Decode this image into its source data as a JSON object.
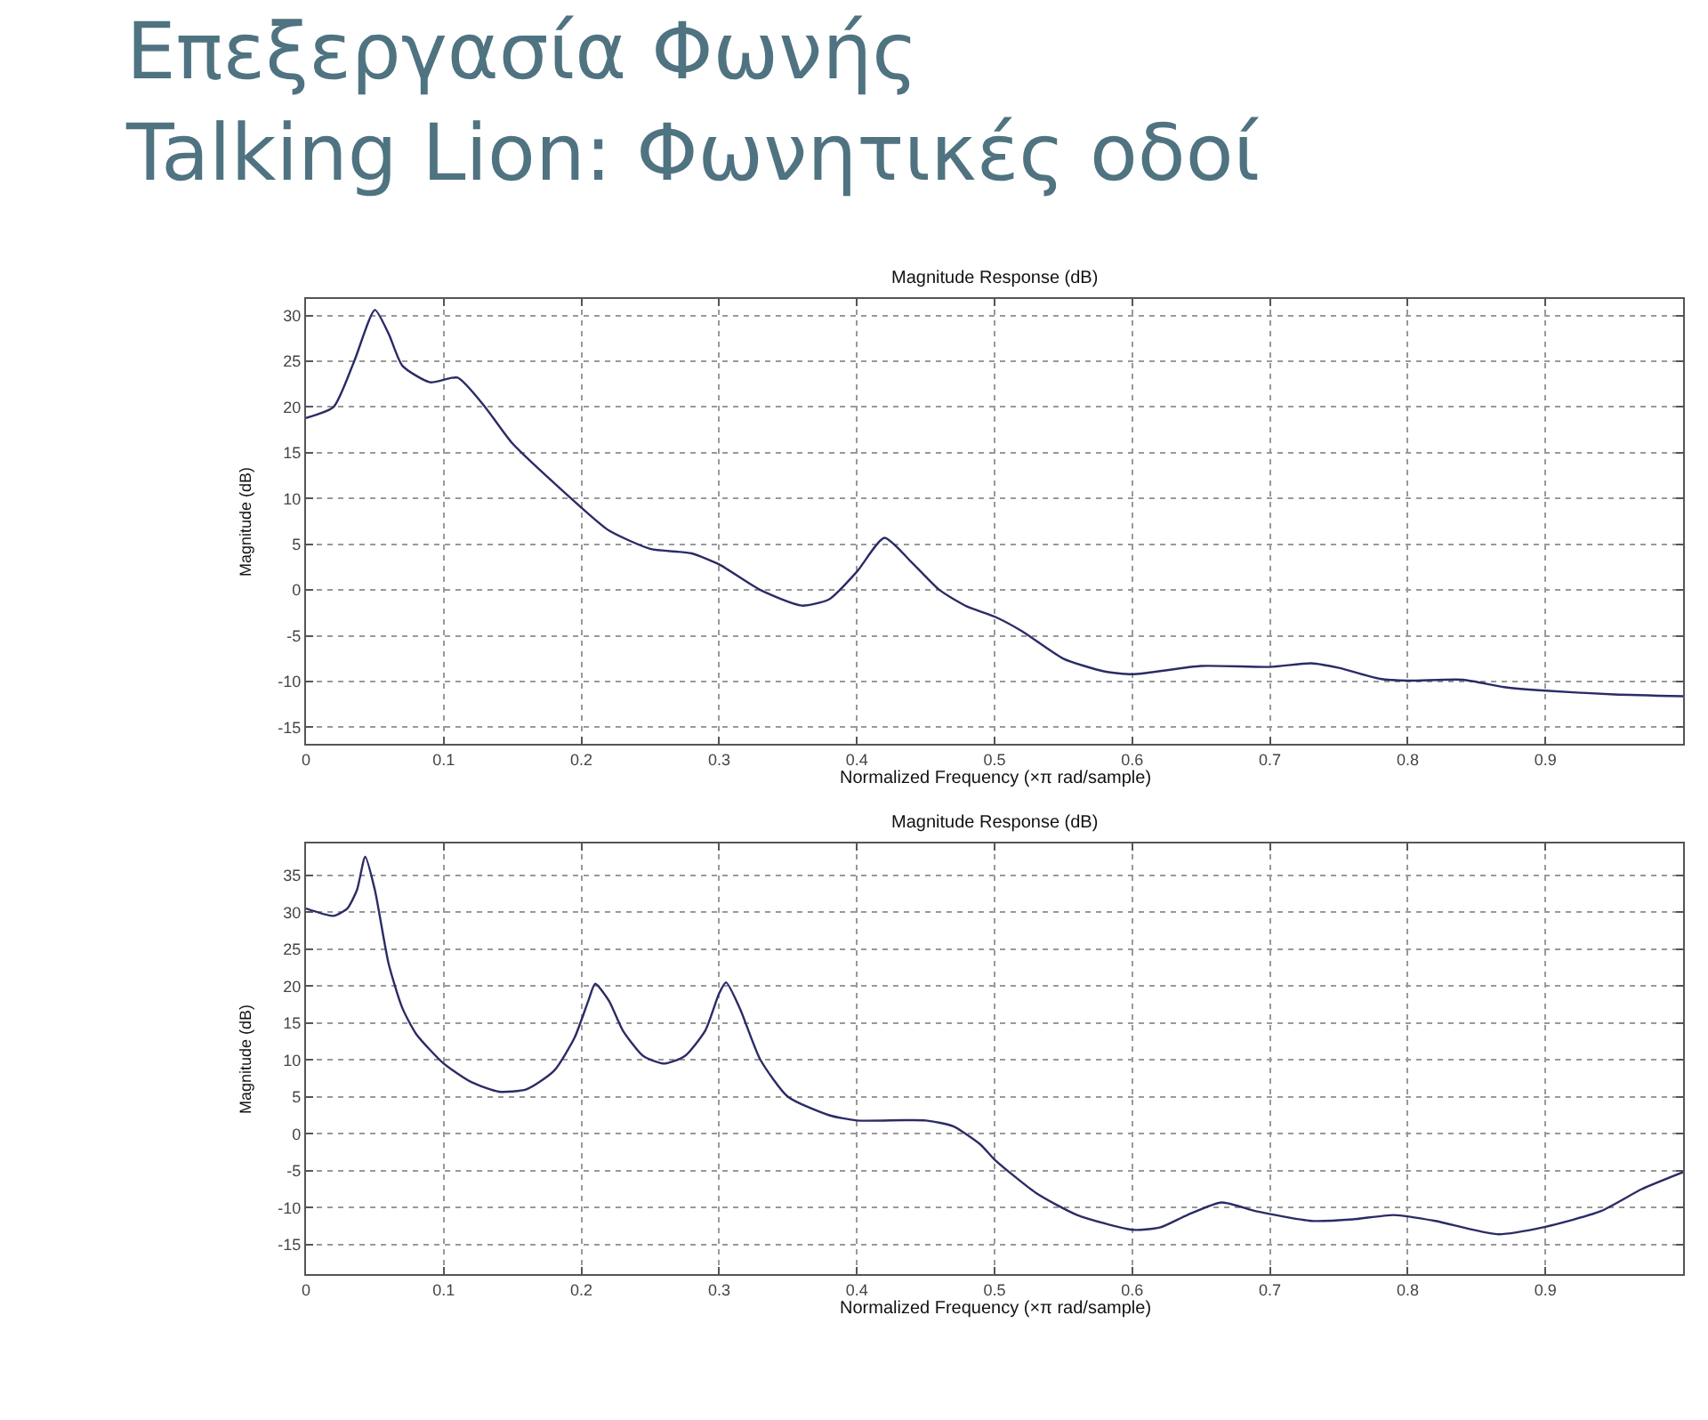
{
  "chart_data": [
    {
      "type": "line",
      "title": "Magnitude Response (dB)",
      "xlabel": "Normalized Frequency (×π rad/sample)",
      "ylabel": "Magnitude (dB)",
      "annotations": [
        "Επεξεργασία Φωνής\nTalking Lion: Φωνητικές οδοί"
      ],
      "x": [
        0,
        0.02,
        0.035,
        0.05,
        0.06,
        0.07,
        0.09,
        0.11,
        0.13,
        0.15,
        0.2,
        0.22,
        0.25,
        0.28,
        0.3,
        0.33,
        0.36,
        0.38,
        0.4,
        0.42,
        0.44,
        0.46,
        0.48,
        0.5,
        0.52,
        0.55,
        0.58,
        0.6,
        0.65,
        0.7,
        0.73,
        0.75,
        0.78,
        0.8,
        0.84,
        0.87,
        0.9,
        0.95,
        1.0
      ],
      "series": [
        {
          "color": "#2b2b66",
          "values": [
            18.8,
            20,
            25,
            30.6,
            28,
            24.5,
            22.7,
            23.2,
            20,
            16,
            9,
            6.5,
            4.5,
            4,
            2.8,
            0,
            -1.7,
            -1,
            2,
            5.7,
            3,
            0,
            -1.8,
            -2.9,
            -4.5,
            -7.5,
            -8.9,
            -9.2,
            -8.3,
            -8.4,
            -8,
            -8.5,
            -9.7,
            -9.9,
            -9.8,
            -10.6,
            -11,
            -11.4,
            -11.6
          ]
        }
      ],
      "xlim": [
        0,
        1
      ],
      "xticks": [
        0,
        0.1,
        0.2,
        0.3,
        0.4,
        0.5,
        0.6,
        0.7,
        0.8,
        0.9
      ],
      "ylim": [
        -16.8,
        31.8
      ],
      "yticks": [
        -15,
        -10,
        -5,
        0,
        5,
        10,
        15,
        20,
        25,
        30
      ],
      "grid": true,
      "line_style": "solid"
    },
    {
      "type": "line",
      "title": "Magnitude Response (dB)",
      "xlabel": "Normalized Frequency (×π rad/sample)",
      "ylabel": "Magnitude (dB)",
      "x": [
        0,
        0.02,
        0.03,
        0.037,
        0.043,
        0.05,
        0.06,
        0.07,
        0.08,
        0.1,
        0.12,
        0.14,
        0.16,
        0.18,
        0.195,
        0.205,
        0.21,
        0.22,
        0.23,
        0.245,
        0.26,
        0.275,
        0.29,
        0.3,
        0.305,
        0.315,
        0.33,
        0.35,
        0.38,
        0.4,
        0.45,
        0.47,
        0.49,
        0.5,
        0.53,
        0.56,
        0.6,
        0.62,
        0.64,
        0.665,
        0.69,
        0.73,
        0.76,
        0.79,
        0.82,
        0.865,
        0.9,
        0.94,
        0.97,
        1.0
      ],
      "series": [
        {
          "color": "#2b2b66",
          "values": [
            30.5,
            29.5,
            30.5,
            33,
            37.5,
            33,
            23,
            17,
            13.5,
            9.5,
            7,
            5.7,
            6,
            8.5,
            13,
            18,
            20.3,
            18,
            14,
            10.5,
            9.5,
            10.5,
            14,
            19,
            20.5,
            17,
            10,
            5,
            2.5,
            1.8,
            1.8,
            1,
            -1.5,
            -3.5,
            -8,
            -11,
            -13,
            -12.7,
            -11,
            -9.3,
            -10.5,
            -11.8,
            -11.6,
            -11,
            -11.8,
            -13.6,
            -12.6,
            -10.5,
            -7.5,
            -5.2
          ]
        }
      ],
      "xlim": [
        0,
        1
      ],
      "xticks": [
        0,
        0.1,
        0.2,
        0.3,
        0.4,
        0.5,
        0.6,
        0.7,
        0.8,
        0.9
      ],
      "ylim": [
        -19,
        39.3
      ],
      "yticks": [
        -15,
        -10,
        -5,
        0,
        5,
        10,
        15,
        20,
        25,
        30,
        35
      ],
      "grid": true,
      "line_style": "solid"
    }
  ]
}
